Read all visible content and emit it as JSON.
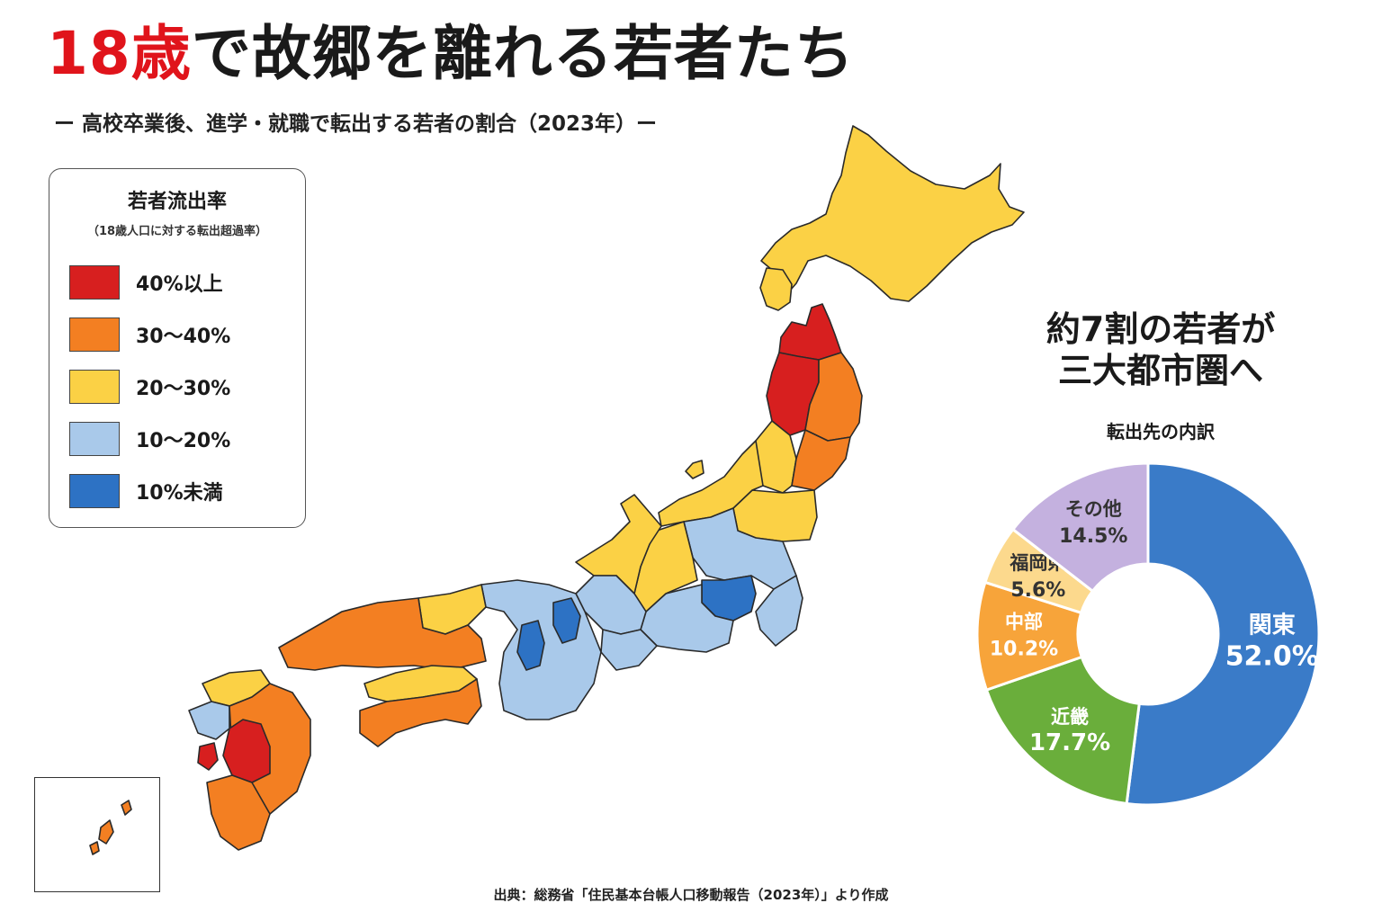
{
  "title": {
    "accent": "18歳",
    "rest": "で故郷を離れる若者たち"
  },
  "subtitle": "ー 高校卒業後、進学・就職で転出する若者の割合（2023年）ー",
  "legend": {
    "title": "若者流出率",
    "subtitle": "（18歳人口に対する転出超過率）",
    "items": [
      {
        "label": "40%以上",
        "color": "#d71f1f"
      },
      {
        "label": "30〜40%",
        "color": "#f37f22"
      },
      {
        "label": "20〜30%",
        "color": "#fbd145"
      },
      {
        "label": "10〜20%",
        "color": "#a9c9ea"
      },
      {
        "label": "10%未満",
        "color": "#2d72c4"
      }
    ]
  },
  "donut": {
    "heading_line1": "約7割の若者が",
    "heading_line2": "三大都市圏へ",
    "caption": "転出先の内訳",
    "slices": [
      {
        "name": "関東",
        "value": 52.0,
        "label": "52.0%",
        "color": "#3a7bc8"
      },
      {
        "name": "近畿",
        "value": 17.7,
        "label": "17.7%",
        "color": "#6aae3b"
      },
      {
        "name": "中部",
        "value": 10.2,
        "label": "10.2%",
        "color": "#f7a43a"
      },
      {
        "name": "福岡県",
        "value": 5.6,
        "label": "5.6%",
        "color": "#fcd98d"
      },
      {
        "name": "その他",
        "value": 14.5,
        "label": "14.5%",
        "color": "#c4b1df"
      }
    ]
  },
  "source": "出典：総務省「住民基本台帳人口移動報告（2023年）」より作成"
}
